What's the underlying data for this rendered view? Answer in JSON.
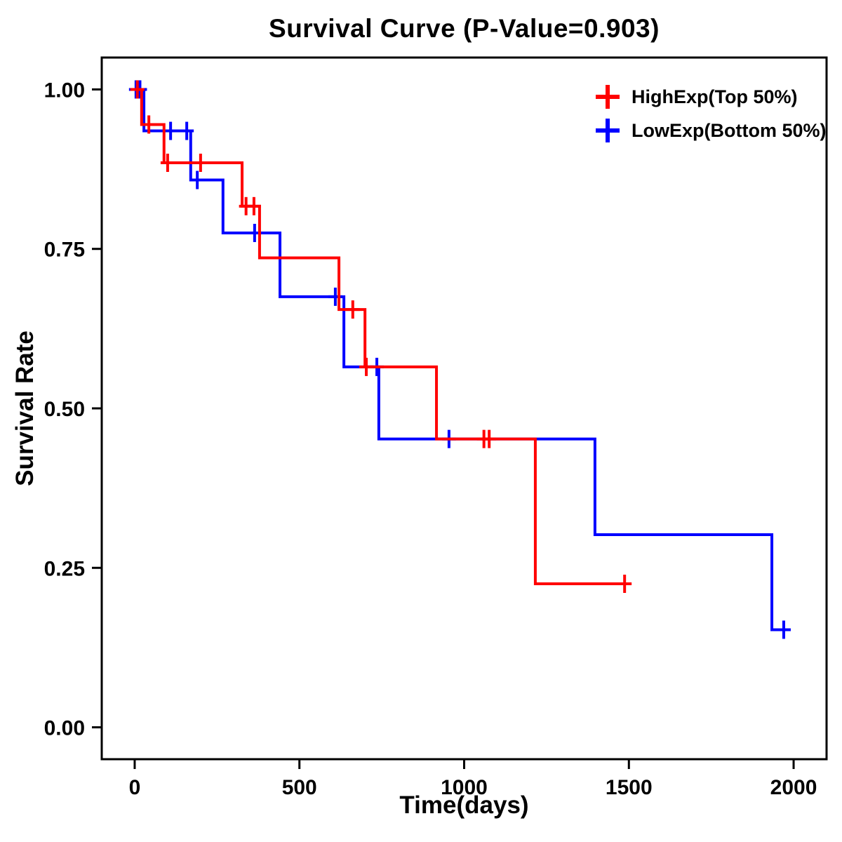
{
  "page": {
    "background": "#ffffff"
  },
  "chart_data": {
    "type": "line",
    "chart_kind": "kaplan-meier-survival-step",
    "title": "Survival Curve (P-Value=0.903)",
    "p_value": 0.903,
    "xlabel": "Time(days)",
    "ylabel": "Survival Rate",
    "xlim": [
      -100,
      2100
    ],
    "ylim": [
      -0.05,
      1.05
    ],
    "xticks": [
      0,
      500,
      1000,
      1500,
      2000
    ],
    "xtick_labels": [
      "0",
      "500",
      "1000",
      "1500",
      "2000"
    ],
    "yticks": [
      0,
      0.25,
      0.5,
      0.75,
      1
    ],
    "ytick_labels": [
      "0.00",
      "0.25",
      "0.50",
      "0.75",
      "1.00"
    ],
    "grid": false,
    "legend": {
      "position": "top-right-inside"
    },
    "series": [
      {
        "name": "HighExp(Top 50%)",
        "color": "#FF0000",
        "start": 1.0,
        "drops": [
          [
            21,
            0.945
          ],
          [
            89,
            0.885
          ],
          [
            326,
            0.817
          ],
          [
            379,
            0.736
          ],
          [
            620,
            0.655
          ],
          [
            699,
            0.565
          ],
          [
            916,
            0.452
          ],
          [
            1216,
            0.225
          ]
        ],
        "end": 1487,
        "censors": [
          [
            8,
            1.0
          ],
          [
            43,
            0.945
          ],
          [
            100,
            0.885
          ],
          [
            200,
            0.885
          ],
          [
            338,
            0.817
          ],
          [
            362,
            0.817
          ],
          [
            662,
            0.655
          ],
          [
            703,
            0.565
          ],
          [
            1060,
            0.452
          ],
          [
            1076,
            0.452
          ],
          [
            1487,
            0.225
          ]
        ]
      },
      {
        "name": "LowExp(Bottom 50%)",
        "color": "#0000FF",
        "start": 1.0,
        "drops": [
          [
            28,
            0.935
          ],
          [
            170,
            0.858
          ],
          [
            268,
            0.775
          ],
          [
            441,
            0.675
          ],
          [
            635,
            0.565
          ],
          [
            741,
            0.452
          ],
          [
            1397,
            0.302
          ],
          [
            1934,
            0.153
          ]
        ],
        "end": 1985,
        "censors": [
          [
            4,
            1.0
          ],
          [
            16,
            1.0
          ],
          [
            109,
            0.935
          ],
          [
            158,
            0.935
          ],
          [
            190,
            0.858
          ],
          [
            364,
            0.775
          ],
          [
            609,
            0.675
          ],
          [
            735,
            0.565
          ],
          [
            954,
            0.452
          ],
          [
            1970,
            0.153
          ]
        ]
      }
    ]
  }
}
